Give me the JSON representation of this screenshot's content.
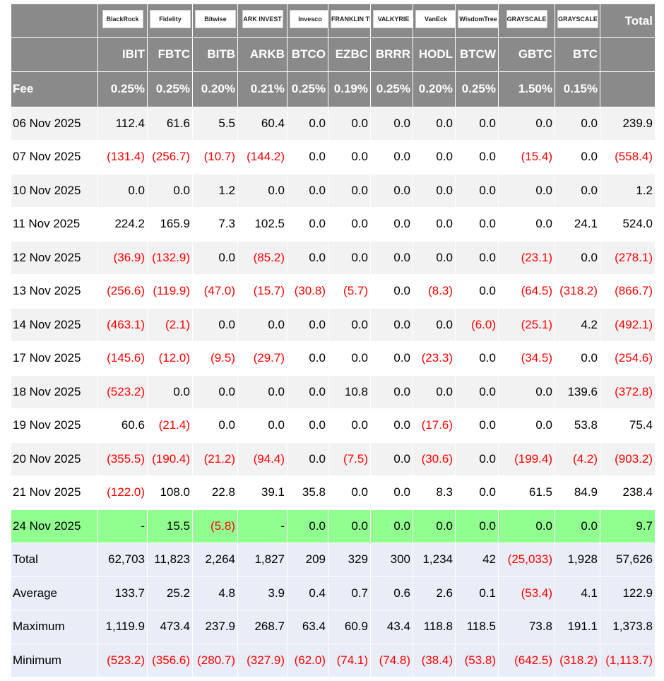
{
  "header": {
    "logos": [
      "BlackRock",
      "Fidelity",
      "Bitwise",
      "ARK INVEST",
      "Invesco",
      "FRANKLIN TEMPLETON",
      "VALKYRIE",
      "VanEck",
      "WisdomTree",
      "GRAYSCALE",
      "GRAYSCALE"
    ],
    "total": "Total"
  },
  "tickers": [
    "IBIT",
    "FBTC",
    "BITB",
    "ARKB",
    "BTCO",
    "EZBC",
    "BRRR",
    "HODL",
    "BTCW",
    "GBTC",
    "BTC"
  ],
  "fee": {
    "label": "Fee",
    "values": [
      "0.25%",
      "0.25%",
      "0.20%",
      "0.21%",
      "0.25%",
      "0.19%",
      "0.25%",
      "0.20%",
      "0.25%",
      "1.50%",
      "0.15%"
    ]
  },
  "rows": [
    {
      "date": "06 Nov 2025",
      "values": [
        "112.4",
        "61.6",
        "5.5",
        "60.4",
        "0.0",
        "0.0",
        "0.0",
        "0.0",
        "0.0",
        "0.0",
        "0.0",
        "239.9"
      ]
    },
    {
      "date": "07 Nov 2025",
      "values": [
        "(131.4)",
        "(256.7)",
        "(10.7)",
        "(144.2)",
        "0.0",
        "0.0",
        "0.0",
        "0.0",
        "0.0",
        "(15.4)",
        "0.0",
        "(558.4)"
      ]
    },
    {
      "date": "10 Nov 2025",
      "values": [
        "0.0",
        "0.0",
        "1.2",
        "0.0",
        "0.0",
        "0.0",
        "0.0",
        "0.0",
        "0.0",
        "0.0",
        "0.0",
        "1.2"
      ]
    },
    {
      "date": "11 Nov 2025",
      "values": [
        "224.2",
        "165.9",
        "7.3",
        "102.5",
        "0.0",
        "0.0",
        "0.0",
        "0.0",
        "0.0",
        "0.0",
        "24.1",
        "524.0"
      ]
    },
    {
      "date": "12 Nov 2025",
      "values": [
        "(36.9)",
        "(132.9)",
        "0.0",
        "(85.2)",
        "0.0",
        "0.0",
        "0.0",
        "0.0",
        "0.0",
        "(23.1)",
        "0.0",
        "(278.1)"
      ]
    },
    {
      "date": "13 Nov 2025",
      "values": [
        "(256.6)",
        "(119.9)",
        "(47.0)",
        "(15.7)",
        "(30.8)",
        "(5.7)",
        "0.0",
        "(8.3)",
        "0.0",
        "(64.5)",
        "(318.2)",
        "(866.7)"
      ]
    },
    {
      "date": "14 Nov 2025",
      "values": [
        "(463.1)",
        "(2.1)",
        "0.0",
        "0.0",
        "0.0",
        "0.0",
        "0.0",
        "0.0",
        "(6.0)",
        "(25.1)",
        "4.2",
        "(492.1)"
      ]
    },
    {
      "date": "17 Nov 2025",
      "values": [
        "(145.6)",
        "(12.0)",
        "(9.5)",
        "(29.7)",
        "0.0",
        "0.0",
        "0.0",
        "(23.3)",
        "0.0",
        "(34.5)",
        "0.0",
        "(254.6)"
      ]
    },
    {
      "date": "18 Nov 2025",
      "values": [
        "(523.2)",
        "0.0",
        "0.0",
        "0.0",
        "0.0",
        "10.8",
        "0.0",
        "0.0",
        "0.0",
        "0.0",
        "139.6",
        "(372.8)"
      ]
    },
    {
      "date": "19 Nov 2025",
      "values": [
        "60.6",
        "(21.4)",
        "0.0",
        "0.0",
        "0.0",
        "0.0",
        "0.0",
        "(17.6)",
        "0.0",
        "0.0",
        "53.8",
        "75.4"
      ]
    },
    {
      "date": "20 Nov 2025",
      "values": [
        "(355.5)",
        "(190.4)",
        "(21.2)",
        "(94.4)",
        "0.0",
        "(7.5)",
        "0.0",
        "(30.6)",
        "0.0",
        "(199.4)",
        "(4.2)",
        "(903.2)"
      ]
    },
    {
      "date": "21 Nov 2025",
      "values": [
        "(122.0)",
        "108.0",
        "22.8",
        "39.1",
        "35.8",
        "0.0",
        "0.0",
        "8.3",
        "0.0",
        "61.5",
        "84.9",
        "238.4"
      ]
    },
    {
      "date": "24 Nov 2025",
      "values": [
        "-",
        "15.5",
        "(5.8)",
        "-",
        "0.0",
        "0.0",
        "0.0",
        "0.0",
        "0.0",
        "0.0",
        "0.0",
        "9.7"
      ],
      "highlight": true
    }
  ],
  "summary": [
    {
      "label": "Total",
      "values": [
        "62,703",
        "11,823",
        "2,264",
        "1,827",
        "209",
        "329",
        "300",
        "1,234",
        "42",
        "(25,033)",
        "1,928",
        "57,626"
      ]
    },
    {
      "label": "Average",
      "values": [
        "133.7",
        "25.2",
        "4.8",
        "3.9",
        "0.4",
        "0.7",
        "0.6",
        "2.6",
        "0.1",
        "(53.4)",
        "4.1",
        "122.9"
      ]
    },
    {
      "label": "Maximum",
      "values": [
        "1,119.9",
        "473.4",
        "237.9",
        "268.7",
        "63.4",
        "60.9",
        "43.4",
        "118.8",
        "118.5",
        "73.8",
        "191.1",
        "1,373.8"
      ]
    },
    {
      "label": "Minimum",
      "values": [
        "(523.2)",
        "(356.6)",
        "(280.7)",
        "(327.9)",
        "(62.0)",
        "(74.1)",
        "(74.8)",
        "(38.4)",
        "(53.8)",
        "(642.5)",
        "(318.2)",
        "(1,113.7)"
      ]
    }
  ]
}
